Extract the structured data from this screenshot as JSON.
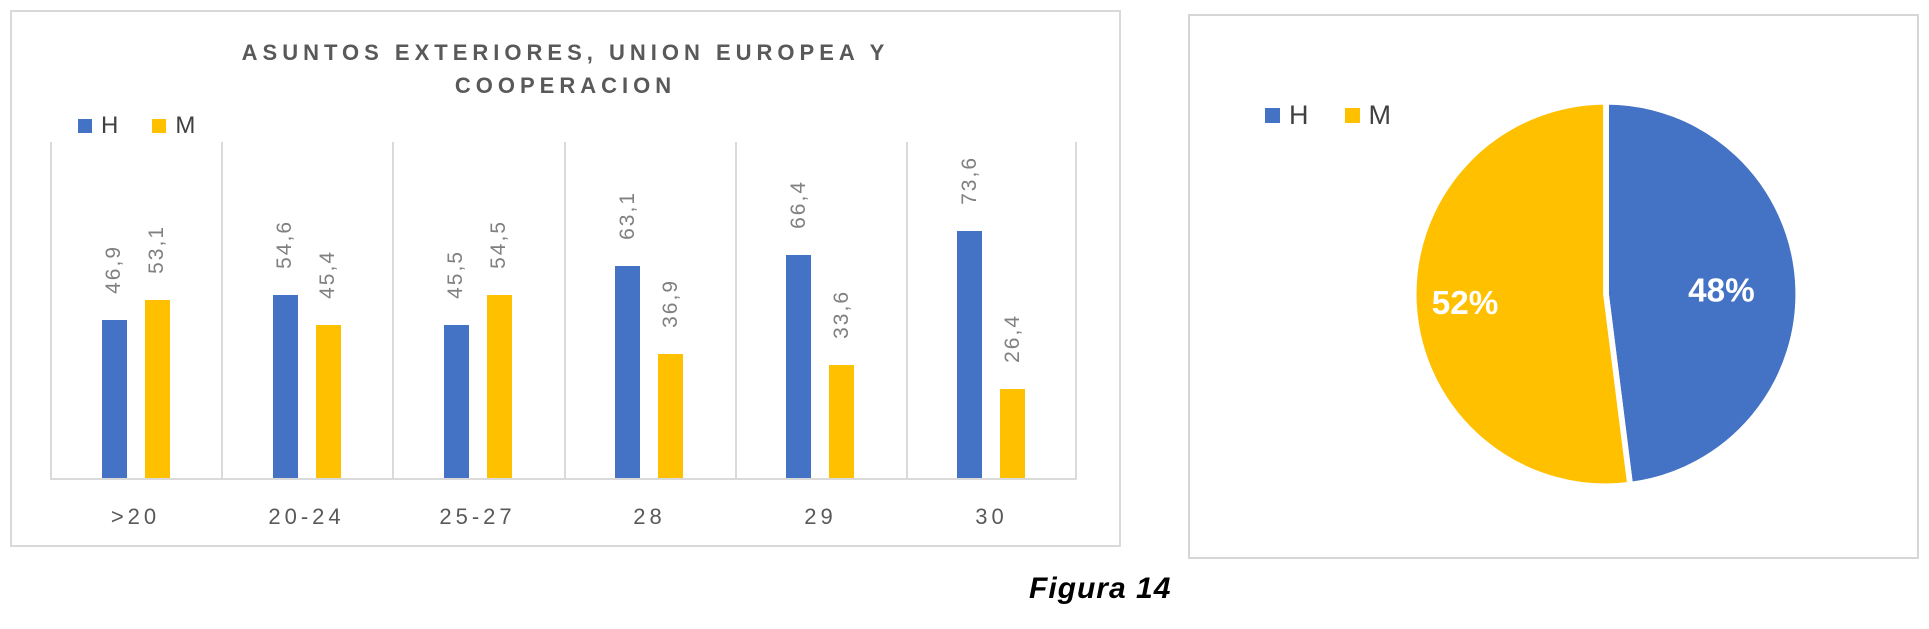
{
  "figure_caption": "Figura 14",
  "colors": {
    "series_h": "#4472C4",
    "series_m": "#FFC000",
    "title_text": "#595959",
    "value_labels": "#808080",
    "axis_labels": "#595959",
    "legend_text": "#404040",
    "gridlines": "#DADADA",
    "pie_label_text": "#FFFFFF"
  },
  "chart_data": [
    {
      "type": "bar",
      "title": "ASUNTOS EXTERIORES, UNION EUROPEA Y COOPERACION",
      "title_lines": [
        "ASUNTOS EXTERIORES, UNION EUROPEA Y",
        "COOPERACION"
      ],
      "categories": [
        ">20",
        "20-24",
        "25-27",
        "28",
        "29",
        "30"
      ],
      "series": [
        {
          "name": "H",
          "color": "#4472C4",
          "values": [
            46.9,
            54.6,
            45.5,
            63.1,
            66.4,
            73.6
          ],
          "labels": [
            "46,9",
            "54,6",
            "45,5",
            "63,1",
            "66,4",
            "73,6"
          ]
        },
        {
          "name": "M",
          "color": "#FFC000",
          "values": [
            53.1,
            45.4,
            54.5,
            36.9,
            33.6,
            26.4
          ],
          "labels": [
            "53,1",
            "45,4",
            "54,5",
            "36,9",
            "33,6",
            "26,4"
          ]
        }
      ],
      "xlabel": "",
      "ylabel": "",
      "ylim": [
        0,
        100
      ],
      "grid": "vertical-category-separators-only",
      "legend_position": "top-left",
      "data_labels": "rotated-90deg-above-bars"
    },
    {
      "type": "pie",
      "title": "",
      "slices": [
        {
          "name": "H",
          "value": 48,
          "label": "48%",
          "color": "#4472C4"
        },
        {
          "name": "M",
          "value": 52,
          "label": "52%",
          "color": "#FFC000"
        }
      ],
      "start_angle_deg": 0,
      "direction": "clockwise",
      "legend_position": "top-left",
      "labels": "percent-inside-white-bold"
    }
  ]
}
